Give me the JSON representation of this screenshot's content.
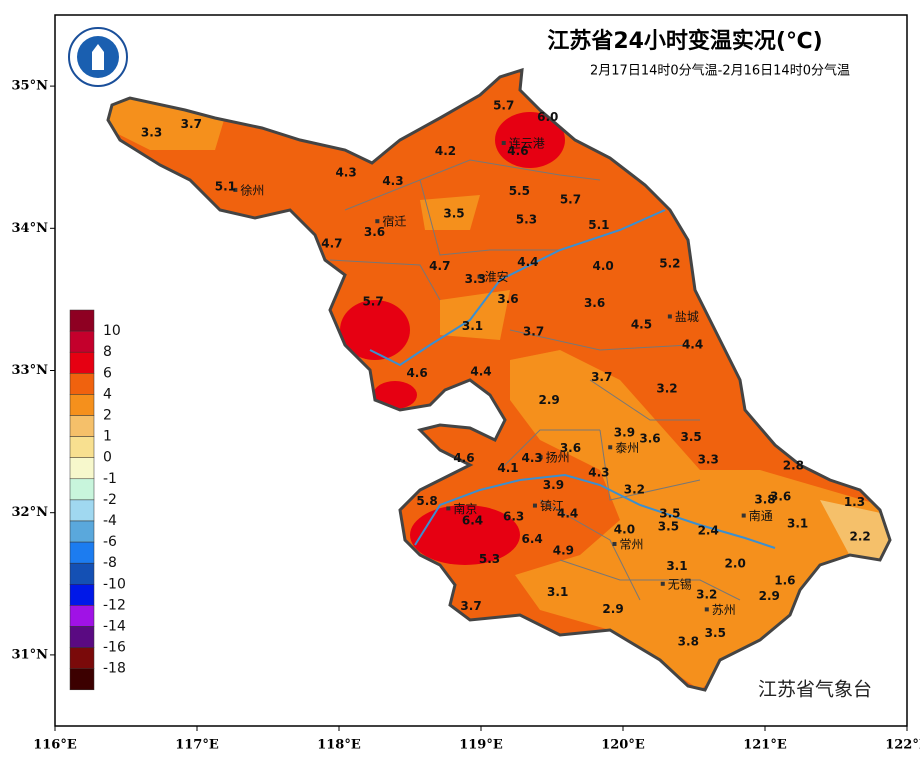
{
  "title": "江苏省24小时变温实况(℃)",
  "subtitle": "2月17日14时0分气温-2月16日14时0分气温",
  "agency": "江苏省气象台",
  "map": {
    "xlim": [
      116,
      122
    ],
    "ylim": [
      30.5,
      35.5
    ],
    "xticks": [
      {
        "value": 116,
        "label": "116°E"
      },
      {
        "value": 117,
        "label": "117°E"
      },
      {
        "value": 118,
        "label": "118°E"
      },
      {
        "value": 119,
        "label": "119°E"
      },
      {
        "value": 120,
        "label": "120°E"
      },
      {
        "value": 121,
        "label": "121°E"
      },
      {
        "value": 122,
        "label": "122°E"
      }
    ],
    "yticks": [
      {
        "value": 31,
        "label": "31°N"
      },
      {
        "value": 32,
        "label": "32°N"
      },
      {
        "value": 33,
        "label": "33°N"
      },
      {
        "value": 34,
        "label": "34°N"
      },
      {
        "value": 35,
        "label": "35°N"
      }
    ],
    "stations": {
      "lon": [
        116.68,
        116.96,
        117.2,
        119.16,
        119.47,
        118.75,
        119.26,
        118.05,
        118.38,
        119.27,
        119.63,
        118.81,
        119.32,
        119.83,
        118.25,
        117.95,
        119.33,
        119.86,
        120.33,
        118.71,
        118.96,
        118.24,
        119.19,
        119.8,
        120.13,
        118.94,
        119.37,
        120.49,
        118.55,
        119.0,
        119.85,
        120.31,
        119.48,
        120.01,
        120.19,
        120.48,
        118.88,
        119.63,
        119.36,
        119.19,
        120.6,
        121.2,
        119.83,
        119.51,
        120.08,
        118.62,
        121.0,
        121.11,
        121.63,
        119.61,
        120.33,
        118.94,
        119.23,
        121.23,
        120.32,
        120.01,
        120.6,
        119.36,
        121.67,
        119.58,
        119.06,
        120.38,
        120.79,
        121.14,
        119.54,
        120.59,
        121.03,
        118.93,
        119.93,
        120.65,
        120.46
      ],
      "lat": [
        34.67,
        34.73,
        34.29,
        34.86,
        34.78,
        34.54,
        34.54,
        34.39,
        34.33,
        34.26,
        34.2,
        34.1,
        34.06,
        34.02,
        33.97,
        33.89,
        33.76,
        33.73,
        33.75,
        33.73,
        33.64,
        33.48,
        33.5,
        33.47,
        33.32,
        33.31,
        33.27,
        33.18,
        32.98,
        32.99,
        32.95,
        32.87,
        32.79,
        32.56,
        32.52,
        32.53,
        32.38,
        32.45,
        32.38,
        32.31,
        32.37,
        32.33,
        32.28,
        32.19,
        32.16,
        32.08,
        32.09,
        32.11,
        32.07,
        31.99,
        31.99,
        31.94,
        31.97,
        31.92,
        31.9,
        31.88,
        31.87,
        31.81,
        31.83,
        31.73,
        31.67,
        31.62,
        31.64,
        31.52,
        31.44,
        31.42,
        31.41,
        31.34,
        31.32,
        31.15,
        31.09
      ],
      "values": [
        3.3,
        3.7,
        5.1,
        5.7,
        6.0,
        4.2,
        4.6,
        4.3,
        4.3,
        5.5,
        5.7,
        3.5,
        5.3,
        5.1,
        3.6,
        4.7,
        4.4,
        4.0,
        5.2,
        4.7,
        3.3,
        5.7,
        3.6,
        3.6,
        4.5,
        3.1,
        3.7,
        4.4,
        4.6,
        4.4,
        3.7,
        3.2,
        2.9,
        3.9,
        3.6,
        3.5,
        4.6,
        3.6,
        4.3,
        4.1,
        3.3,
        2.8,
        4.3,
        3.9,
        3.2,
        5.8,
        3.8,
        3.6,
        1.3,
        4.4,
        3.5,
        6.4,
        6.3,
        3.1,
        3.5,
        4.0,
        2.4,
        6.4,
        2.2,
        4.9,
        5.3,
        3.1,
        2.0,
        1.6,
        3.1,
        3.2,
        2.9,
        3.7,
        2.9,
        3.5,
        3.8
      ],
      "value_labels": [
        "3.3",
        "3.7",
        "5.1",
        "5.7",
        "6.0",
        "4.2",
        "4.6",
        "4.3",
        "4.3",
        "5.5",
        "5.7",
        "3.5",
        "5.3",
        "5.1",
        "3.6",
        "4.7",
        "4.4",
        "4.0",
        "5.2",
        "4.7",
        "3.3",
        "5.7",
        "3.6",
        "3.6",
        "4.5",
        "3.1",
        "3.7",
        "4.4",
        "4.6",
        "4.4",
        "3.7",
        "3.2",
        "2.9",
        "3.9",
        "3.6",
        "3.5",
        "4.6",
        "3.6",
        "4.3",
        "4.1",
        "3.3",
        "2.8",
        "4.3",
        "3.9",
        "3.2",
        "5.8",
        "3.8",
        "3.6",
        "1.3",
        "4.4",
        "3.5",
        "6.4",
        "6.3",
        "3.1",
        "3.5",
        "4.0",
        "2.4",
        "6.4",
        "2.2",
        "4.9",
        "5.3",
        "3.1",
        "2.0",
        "1.6",
        "3.1",
        "3.2",
        "2.9",
        "3.7",
        "2.9",
        "3.5",
        "3.8"
      ]
    },
    "cities": {
      "names": [
        "连云港",
        "徐州",
        "宿迁",
        "淮安",
        "盐城",
        "扬州",
        "泰州",
        "南京",
        "镇江",
        "常州",
        "南通",
        "无锡",
        "苏州"
      ],
      "lon": [
        119.16,
        117.27,
        118.27,
        118.99,
        120.33,
        119.42,
        119.91,
        118.77,
        119.38,
        119.94,
        120.85,
        120.28,
        120.59
      ],
      "lat": [
        34.6,
        34.27,
        34.05,
        33.66,
        33.38,
        32.39,
        32.46,
        32.03,
        32.05,
        31.78,
        31.98,
        31.5,
        31.32
      ]
    }
  },
  "colorbar": {
    "levels": [
      10,
      8,
      6,
      4,
      2,
      1,
      0,
      -1,
      -2,
      -4,
      -6,
      -8,
      -10,
      -12,
      -14,
      -16,
      -18
    ],
    "colors": [
      "#8e0022",
      "#c4002c",
      "#e60012",
      "#f0620e",
      "#f5901c",
      "#f5c06a",
      "#f8e090",
      "#f7f8cc",
      "#c8f5dc",
      "#a0d8f0",
      "#5aa8dc",
      "#1c7cf0",
      "#1450b4",
      "#0018e8",
      "#a012e6",
      "#5a0a82",
      "#7a0a0a",
      "#3c0000"
    ]
  }
}
